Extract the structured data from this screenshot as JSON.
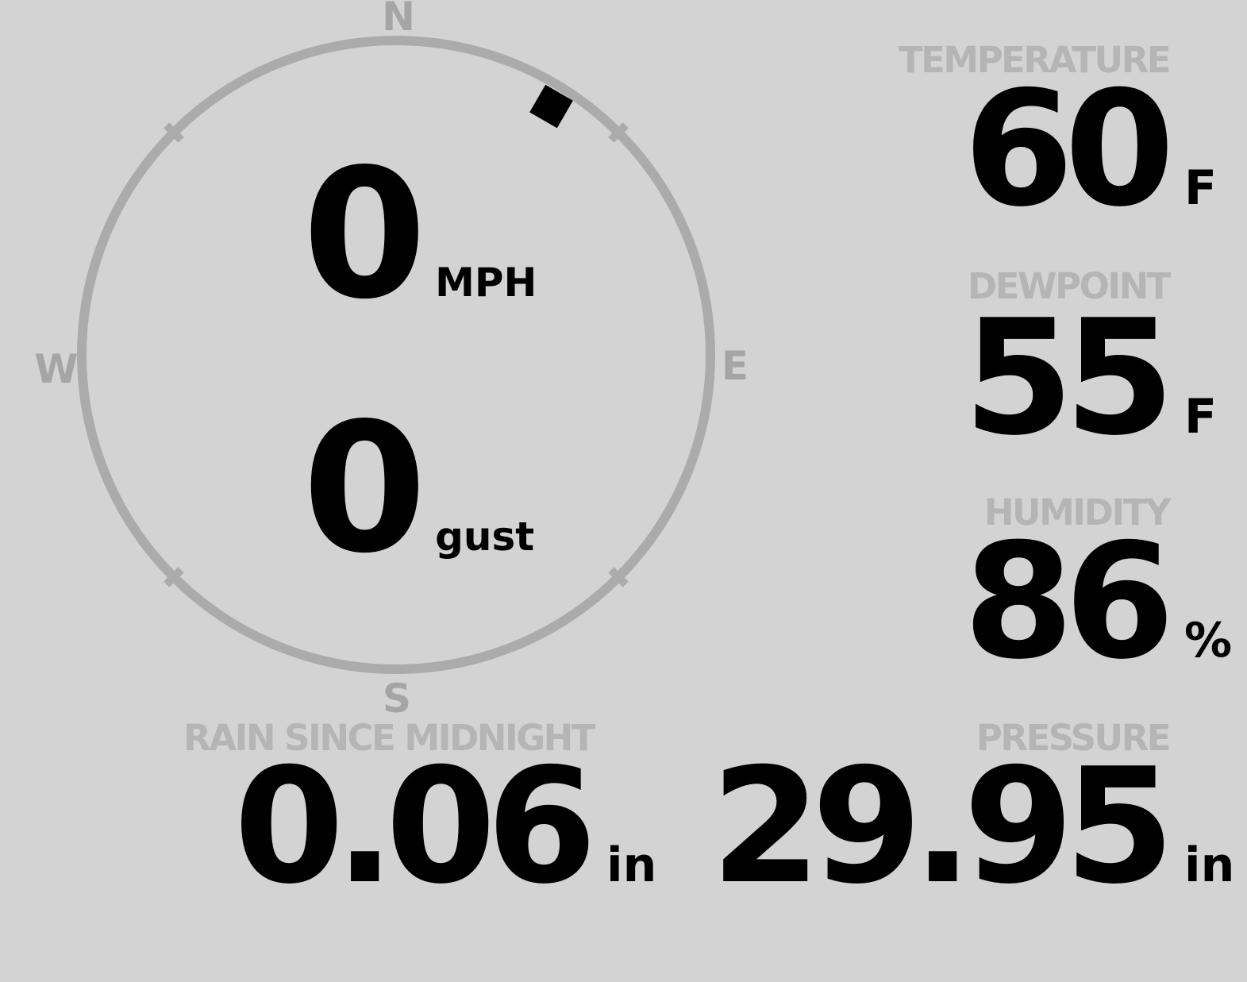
{
  "colors": {
    "bg": "#d3d3d3",
    "value": "#000000",
    "metric-label": "#b5b5b5",
    "compass-letter": "#a5a5a5",
    "compass-ring": "#ababab",
    "marker": "#000000"
  },
  "wind": {
    "compass": {
      "north": "N",
      "east": "E",
      "south": "S",
      "west": "W"
    },
    "speed": {
      "value": "0",
      "unit": "MPH"
    },
    "gust": {
      "value": "0",
      "unit": "gust"
    },
    "direction": {
      "bearing_deg": 32,
      "marker_shape": "black-square"
    }
  },
  "metrics": {
    "temperature": {
      "label": "TEMPERATURE",
      "value": "60",
      "unit": "F"
    },
    "dewpoint": {
      "label": "DEWPOINT",
      "value": "55",
      "unit": "F"
    },
    "humidity": {
      "label": "HUMIDITY",
      "value": "86",
      "unit": "%"
    },
    "pressure": {
      "label": "PRESSURE",
      "value": "29.95",
      "unit": "in"
    },
    "rain_since_midnight": {
      "label": "RAIN SINCE MIDNIGHT",
      "value": "0.06",
      "unit": "in"
    }
  }
}
